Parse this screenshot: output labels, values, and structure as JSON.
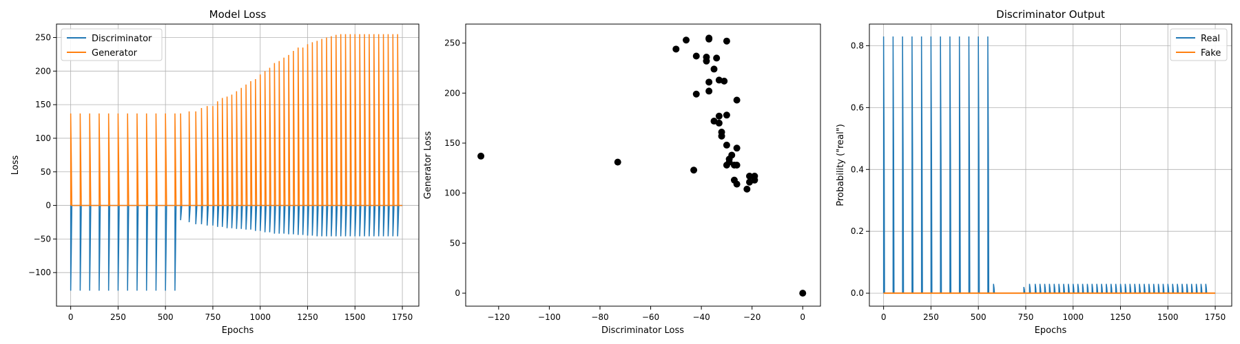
{
  "chart_data": [
    {
      "type": "line",
      "title": "Model Loss",
      "xlabel": "Epochs",
      "ylabel": "Loss",
      "xlim": [
        -75,
        1837
      ],
      "ylim": [
        -150,
        270
      ],
      "xticks": [
        0,
        250,
        500,
        750,
        1000,
        1250,
        1500,
        1750
      ],
      "yticks": [
        -100,
        -50,
        0,
        50,
        100,
        150,
        200,
        250
      ],
      "grid": true,
      "legend": "upper-left",
      "pulse_period": 50,
      "series": [
        {
          "name": "Discriminator",
          "color": "#1f77b4",
          "baseline": 0,
          "pulse_starts": [
            0,
            50,
            100,
            150,
            200,
            250,
            300,
            350,
            400,
            450,
            500,
            550,
            580,
            625,
            660,
            690,
            720,
            750,
            775,
            800,
            825,
            850,
            875,
            900,
            925,
            950,
            975,
            1000,
            1025,
            1050,
            1075,
            1100,
            1125,
            1150,
            1175,
            1200,
            1225,
            1250,
            1275,
            1300,
            1325,
            1350,
            1375,
            1400,
            1425,
            1450,
            1475,
            1500,
            1525,
            1550,
            1575,
            1600,
            1625,
            1650,
            1675,
            1700,
            1725
          ],
          "pulse_peaks": [
            -127,
            -127,
            -127,
            -127,
            -127,
            -127,
            -127,
            -127,
            -127,
            -127,
            -127,
            -127,
            -22,
            -25,
            -28,
            -28,
            -30,
            -30,
            -32,
            -32,
            -34,
            -34,
            -35,
            -35,
            -36,
            -36,
            -38,
            -38,
            -40,
            -40,
            -42,
            -42,
            -42,
            -43,
            -43,
            -44,
            -44,
            -45,
            -45,
            -46,
            -46,
            -46,
            -46,
            -46,
            -46,
            -46,
            -46,
            -46,
            -46,
            -46,
            -46,
            -46,
            -46,
            -46,
            -46,
            -46,
            -46
          ]
        },
        {
          "name": "Generator",
          "color": "#ff7f0e",
          "baseline": 0,
          "pulse_starts": [
            0,
            50,
            100,
            150,
            200,
            250,
            300,
            350,
            400,
            450,
            500,
            550,
            580,
            625,
            660,
            690,
            720,
            750,
            775,
            800,
            825,
            850,
            875,
            900,
            925,
            950,
            975,
            1000,
            1025,
            1050,
            1075,
            1100,
            1125,
            1150,
            1175,
            1200,
            1225,
            1250,
            1275,
            1300,
            1325,
            1350,
            1375,
            1400,
            1425,
            1450,
            1475,
            1500,
            1525,
            1550,
            1575,
            1600,
            1625,
            1650,
            1675,
            1700,
            1725
          ],
          "pulse_peaks": [
            137,
            137,
            137,
            137,
            137,
            137,
            137,
            137,
            137,
            137,
            137,
            137,
            137,
            140,
            140,
            145,
            148,
            148,
            155,
            160,
            162,
            165,
            170,
            175,
            180,
            185,
            188,
            195,
            200,
            205,
            212,
            215,
            220,
            224,
            230,
            235,
            235,
            240,
            243,
            245,
            248,
            250,
            252,
            254,
            255,
            255,
            255,
            255,
            255,
            255,
            255,
            255,
            255,
            255,
            255,
            255,
            255
          ]
        }
      ]
    },
    {
      "type": "scatter",
      "title": "",
      "xlabel": "Discriminator Loss",
      "ylabel": "Generator Loss",
      "xlim": [
        -133,
        7
      ],
      "ylim": [
        -13,
        269
      ],
      "xticks": [
        -120,
        -100,
        -80,
        -60,
        -40,
        -20,
        0
      ],
      "yticks": [
        0,
        50,
        100,
        150,
        200,
        250
      ],
      "grid": false,
      "color": "#000000",
      "points": [
        [
          -127,
          137
        ],
        [
          -73,
          131
        ],
        [
          -43,
          123
        ],
        [
          0,
          0
        ],
        [
          -50,
          244
        ],
        [
          -46,
          253
        ],
        [
          -42,
          237
        ],
        [
          -38,
          232
        ],
        [
          -38,
          236
        ],
        [
          -37,
          255
        ],
        [
          -37,
          254
        ],
        [
          -35,
          224
        ],
        [
          -34,
          235
        ],
        [
          -30,
          252
        ],
        [
          -37,
          211
        ],
        [
          -33,
          213
        ],
        [
          -31,
          212
        ],
        [
          -42,
          199
        ],
        [
          -37,
          202
        ],
        [
          -26,
          193
        ],
        [
          -30,
          178
        ],
        [
          -33,
          177
        ],
        [
          -33,
          170
        ],
        [
          -35,
          172
        ],
        [
          -32,
          161
        ],
        [
          -32,
          157
        ],
        [
          -30,
          148
        ],
        [
          -26,
          145
        ],
        [
          -28,
          138
        ],
        [
          -29,
          134
        ],
        [
          -30,
          128
        ],
        [
          -27,
          128
        ],
        [
          -26,
          128
        ],
        [
          -29,
          131
        ],
        [
          -27,
          113
        ],
        [
          -26,
          109
        ],
        [
          -21,
          117
        ],
        [
          -19,
          117
        ],
        [
          -21,
          111
        ],
        [
          -19,
          113
        ],
        [
          -22,
          104
        ]
      ]
    },
    {
      "type": "line",
      "title": "Discriminator Output",
      "xlabel": "Epochs",
      "ylabel": "Probability (\"real\")",
      "xlim": [
        -75,
        1837
      ],
      "ylim": [
        -0.042,
        0.87
      ],
      "xticks": [
        0,
        250,
        500,
        750,
        1000,
        1250,
        1500,
        1750
      ],
      "yticks": [
        0.0,
        0.2,
        0.4,
        0.6,
        0.8
      ],
      "grid": true,
      "legend": "upper-right",
      "series": [
        {
          "name": "Real",
          "color": "#1f77b4",
          "baseline": 0,
          "pulse_starts": [
            0,
            50,
            100,
            150,
            200,
            250,
            300,
            350,
            400,
            450,
            500,
            550,
            580,
            740,
            770,
            800,
            825,
            850,
            875,
            900,
            925,
            950,
            975,
            1000,
            1025,
            1050,
            1075,
            1100,
            1125,
            1150,
            1175,
            1200,
            1225,
            1250,
            1275,
            1300,
            1325,
            1350,
            1375,
            1400,
            1425,
            1450,
            1475,
            1500,
            1525,
            1550,
            1575,
            1600,
            1625,
            1650,
            1675,
            1700
          ],
          "pulse_peaks": [
            0.83,
            0.83,
            0.83,
            0.83,
            0.83,
            0.83,
            0.83,
            0.83,
            0.83,
            0.83,
            0.83,
            0.83,
            0.03,
            0.02,
            0.03,
            0.03,
            0.03,
            0.03,
            0.03,
            0.03,
            0.03,
            0.03,
            0.03,
            0.03,
            0.03,
            0.03,
            0.03,
            0.03,
            0.03,
            0.03,
            0.03,
            0.03,
            0.03,
            0.03,
            0.03,
            0.03,
            0.03,
            0.03,
            0.03,
            0.03,
            0.03,
            0.03,
            0.03,
            0.03,
            0.03,
            0.03,
            0.03,
            0.03,
            0.03,
            0.03,
            0.03,
            0.03
          ]
        },
        {
          "name": "Fake",
          "color": "#ff7f0e",
          "baseline": 0,
          "x_range": [
            0,
            1750
          ],
          "constant": 0
        }
      ]
    }
  ]
}
